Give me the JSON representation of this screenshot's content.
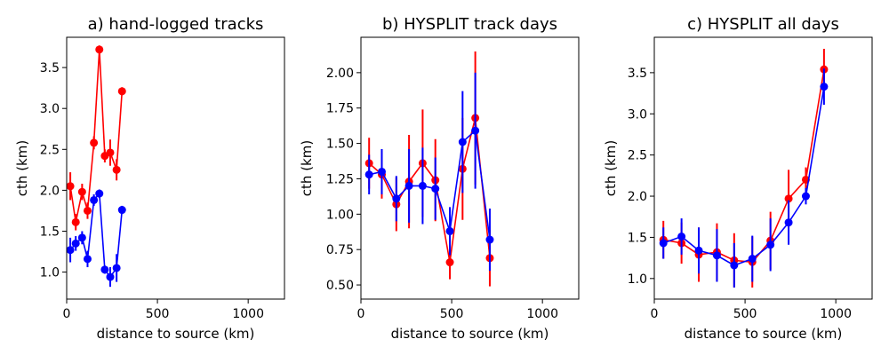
{
  "chart_data": [
    {
      "type": "line",
      "title": "a) hand-logged tracks",
      "xlabel": "distance to source (km)",
      "ylabel": "cth (km)",
      "xlim": [
        0,
        1200
      ],
      "ylim": [
        0.67,
        3.87
      ],
      "xticks": [
        0,
        500,
        1000
      ],
      "yticks": [
        1.0,
        1.5,
        2.0,
        2.5,
        3.0,
        3.5
      ],
      "ytick_labels": [
        "1.0",
        "1.5",
        "2.0",
        "2.5",
        "3.0",
        "3.5"
      ],
      "series": [
        {
          "name": "red",
          "color": "#ff0000",
          "x": [
            20,
            50,
            85,
            115,
            150,
            180,
            210,
            240,
            275,
            305
          ],
          "y": [
            2.05,
            1.61,
            1.98,
            1.75,
            2.58,
            3.72,
            2.42,
            2.46,
            2.25,
            3.21
          ],
          "err": [
            0.17,
            0.1,
            0.1,
            0.1,
            0.08,
            0.05,
            0.08,
            0.16,
            0.13,
            0.05
          ]
        },
        {
          "name": "blue",
          "color": "#0000ff",
          "x": [
            20,
            50,
            85,
            115,
            150,
            180,
            210,
            240,
            275,
            305
          ],
          "y": [
            1.27,
            1.35,
            1.42,
            1.16,
            1.88,
            1.96,
            1.03,
            0.94,
            1.05,
            1.76
          ],
          "err": [
            0.15,
            0.09,
            0.08,
            0.1,
            0.07,
            0.05,
            0.05,
            0.12,
            0.17,
            0.05
          ]
        }
      ]
    },
    {
      "type": "line",
      "title": "b) HYSPLIT track days",
      "xlabel": "distance to source (km)",
      "ylabel": "cth (km)",
      "xlim": [
        0,
        1200
      ],
      "ylim": [
        0.4,
        2.25
      ],
      "xticks": [
        0,
        500,
        1000
      ],
      "yticks": [
        0.5,
        0.75,
        1.0,
        1.25,
        1.5,
        1.75,
        2.0
      ],
      "ytick_labels": [
        "0.50",
        "0.75",
        "1.00",
        "1.25",
        "1.50",
        "1.75",
        "2.00"
      ],
      "series": [
        {
          "name": "red",
          "color": "#ff0000",
          "x": [
            45,
            115,
            195,
            265,
            340,
            410,
            490,
            560,
            630,
            710
          ],
          "y": [
            1.36,
            1.28,
            1.07,
            1.23,
            1.36,
            1.24,
            0.66,
            1.32,
            1.68,
            0.69
          ],
          "err": [
            0.18,
            0.17,
            0.19,
            0.33,
            0.38,
            0.29,
            0.12,
            0.36,
            0.47,
            0.2
          ]
        },
        {
          "name": "blue",
          "color": "#0000ff",
          "x": [
            45,
            115,
            195,
            265,
            340,
            410,
            490,
            560,
            630,
            710
          ],
          "y": [
            1.28,
            1.3,
            1.11,
            1.2,
            1.2,
            1.18,
            0.88,
            1.51,
            1.59,
            0.82
          ],
          "err": [
            0.14,
            0.16,
            0.16,
            0.26,
            0.27,
            0.22,
            0.17,
            0.36,
            0.41,
            0.22
          ]
        }
      ]
    },
    {
      "type": "line",
      "title": "c) HYSPLIT all days",
      "xlabel": "distance to source (km)",
      "ylabel": "cth (km)",
      "xlim": [
        0,
        1200
      ],
      "ylim": [
        0.75,
        3.93
      ],
      "xticks": [
        0,
        500,
        1000
      ],
      "yticks": [
        1.0,
        1.5,
        2.0,
        2.5,
        3.0,
        3.5
      ],
      "ytick_labels": [
        "1.0",
        "1.5",
        "2.0",
        "2.5",
        "3.0",
        "3.5"
      ],
      "series": [
        {
          "name": "red",
          "color": "#ff0000",
          "x": [
            50,
            150,
            245,
            345,
            440,
            540,
            640,
            740,
            835,
            935
          ],
          "y": [
            1.47,
            1.43,
            1.29,
            1.32,
            1.22,
            1.2,
            1.46,
            1.97,
            2.2,
            3.54
          ],
          "err": [
            0.23,
            0.25,
            0.33,
            0.35,
            0.33,
            0.31,
            0.35,
            0.35,
            0.15,
            0.25
          ]
        },
        {
          "name": "blue",
          "color": "#0000ff",
          "x": [
            50,
            150,
            245,
            345,
            440,
            540,
            640,
            740,
            835,
            935
          ],
          "y": [
            1.43,
            1.51,
            1.34,
            1.28,
            1.16,
            1.24,
            1.41,
            1.68,
            2.0,
            3.33
          ],
          "err": [
            0.19,
            0.22,
            0.28,
            0.32,
            0.27,
            0.28,
            0.32,
            0.27,
            0.1,
            0.22
          ]
        }
      ]
    }
  ]
}
